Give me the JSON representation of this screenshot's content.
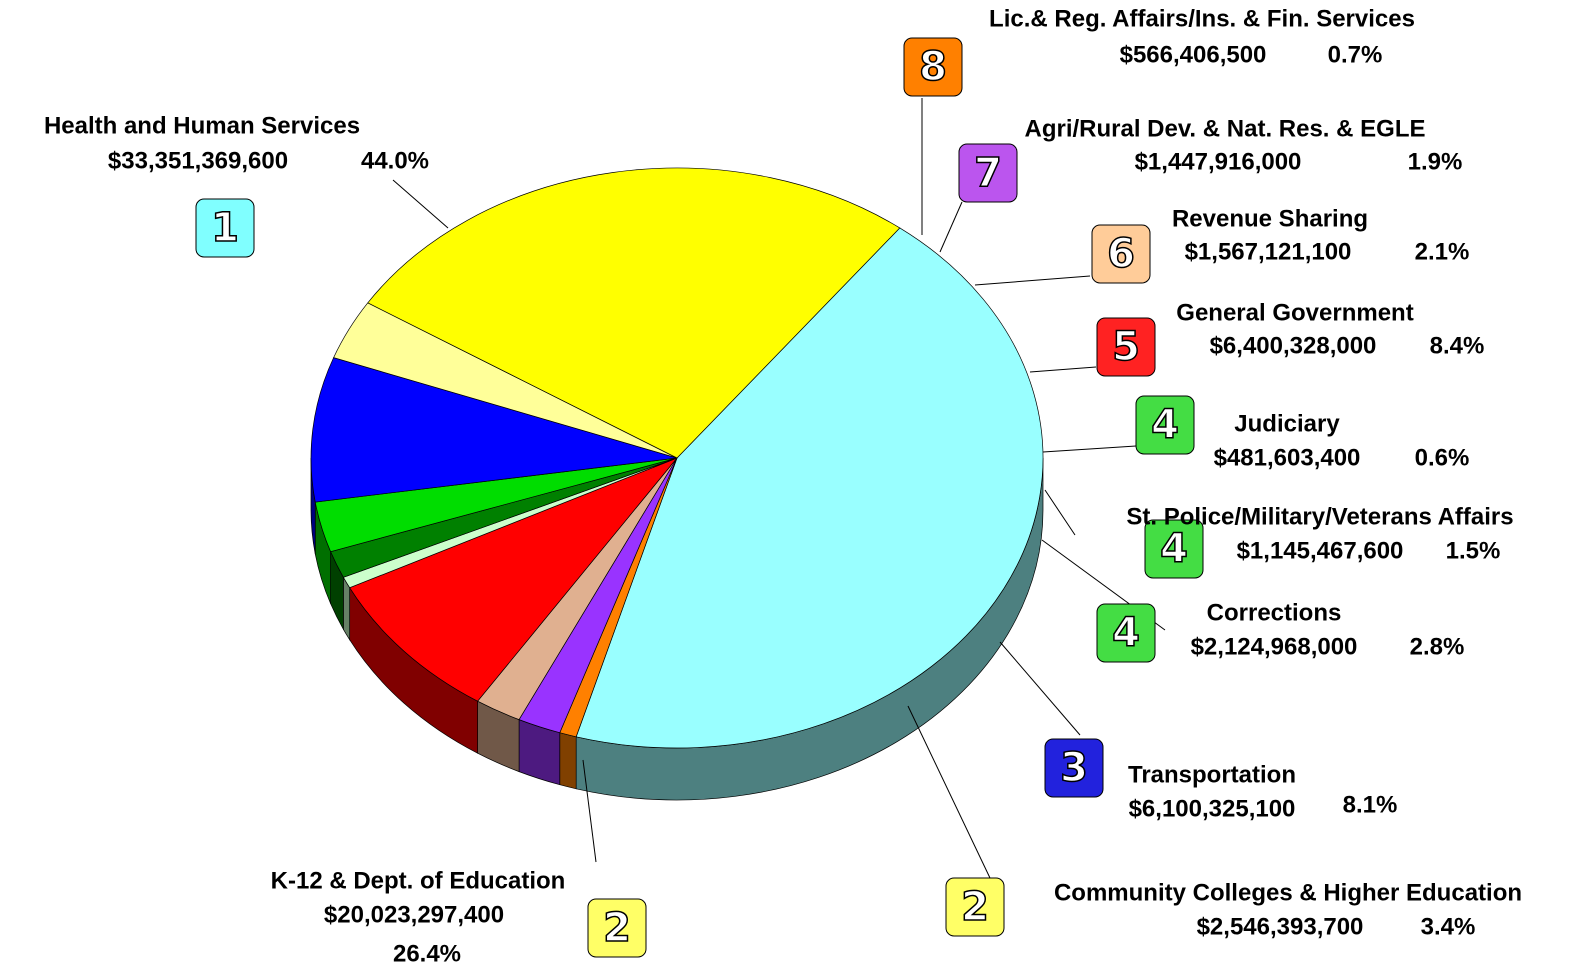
{
  "chart_data": {
    "type": "pie",
    "categories": [
      "Health and Human Services",
      "Lic.& Reg. Affairs/Ins. & Fin. Services",
      "Agri/Rural Dev. & Nat. Res. & EGLE",
      "Revenue Sharing",
      "General Government",
      "Judiciary",
      "St. Police/Military/Veterans Affairs",
      "Corrections",
      "Transportation",
      "Community Colleges & Higher Education",
      "K-12 & Dept. of Education"
    ],
    "values": [
      33351369600,
      566406500,
      1447916000,
      1567121100,
      6400328000,
      481603400,
      1145467600,
      2124968000,
      6100325100,
      2546393700,
      20023297400
    ],
    "value_labels": [
      "$33,351,369,600",
      "$566,406,500",
      "$1,447,916,000",
      "$1,567,121,100",
      "$6,400,328,000",
      "$481,603,400",
      "$1,145,467,600",
      "$2,124,968,000",
      "$6,100,325,100",
      "$2,546,393,700",
      "$20,023,297,400"
    ],
    "percent_labels": [
      "44.0%",
      "0.7%",
      "1.9%",
      "2.1%",
      "8.4%",
      "0.6%",
      "1.5%",
      "2.8%",
      "8.1%",
      "3.4%",
      "26.4%"
    ],
    "groups": [
      1,
      8,
      7,
      6,
      5,
      4,
      4,
      4,
      3,
      2,
      2
    ],
    "colors": [
      "#99ffff",
      "#ff8000",
      "#9933ff",
      "#e0b090",
      "#ff0000",
      "#ccffcc",
      "#008000",
      "#00dd00",
      "#0000ff",
      "#ffff99",
      "#ffff00"
    ],
    "badge_colors": [
      "#80ffff",
      "#ff8000",
      "#bb55ee",
      "#ffcc99",
      "#ff2222",
      "#44dd44",
      "#44dd44",
      "#44dd44",
      "#2222dd",
      "#ffff66",
      "#ffff66"
    ]
  }
}
